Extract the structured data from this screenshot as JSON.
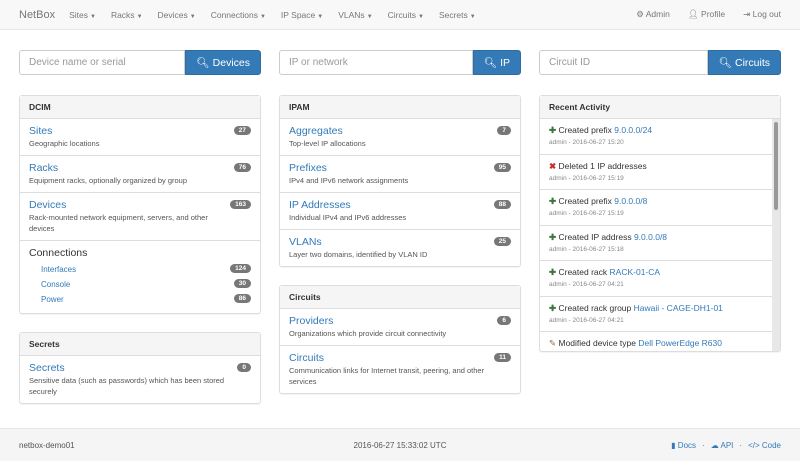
{
  "nav": {
    "brand": "NetBox",
    "menus": [
      "Sites",
      "Racks",
      "Devices",
      "Connections",
      "IP Space",
      "VLANs",
      "Circuits",
      "Secrets"
    ],
    "admin": "Admin",
    "profile": "Profile",
    "logout": "Log out"
  },
  "search": {
    "device": {
      "placeholder": "Device name or serial",
      "button": "Devices"
    },
    "ip": {
      "placeholder": "IP or network",
      "button": "IP"
    },
    "circuit": {
      "placeholder": "Circuit ID",
      "button": "Circuits"
    }
  },
  "dcim": {
    "title": "DCIM",
    "items": [
      {
        "label": "Sites",
        "desc": "Geographic locations",
        "count": "27"
      },
      {
        "label": "Racks",
        "desc": "Equipment racks, optionally organized by group",
        "count": "76"
      },
      {
        "label": "Devices",
        "desc": "Rack-mounted network equipment, servers, and other devices",
        "count": "163"
      }
    ],
    "connections": {
      "label": "Connections",
      "items": [
        {
          "label": "Interfaces",
          "count": "124"
        },
        {
          "label": "Console",
          "count": "30"
        },
        {
          "label": "Power",
          "count": "86"
        }
      ]
    }
  },
  "secrets": {
    "title": "Secrets",
    "items": [
      {
        "label": "Secrets",
        "desc": "Sensitive data (such as passwords) which has been stored securely",
        "count": "0"
      }
    ]
  },
  "ipam": {
    "title": "IPAM",
    "items": [
      {
        "label": "Aggregates",
        "desc": "Top-level IP allocations",
        "count": "7"
      },
      {
        "label": "Prefixes",
        "desc": "IPv4 and IPv6 network assignments",
        "count": "95"
      },
      {
        "label": "IP Addresses",
        "desc": "Individual IPv4 and IPv6 addresses",
        "count": "88"
      },
      {
        "label": "VLANs",
        "desc": "Layer two domains, identified by VLAN ID",
        "count": "25"
      }
    ]
  },
  "circuits": {
    "title": "Circuits",
    "items": [
      {
        "label": "Providers",
        "desc": "Organizations which provide circuit connectivity",
        "count": "6"
      },
      {
        "label": "Circuits",
        "desc": "Communication links for Internet transit, peering, and other services",
        "count": "11"
      }
    ]
  },
  "activity": {
    "title": "Recent Activity",
    "items": [
      {
        "icon": "plus",
        "text": "Created prefix",
        "link": "9.0.0.0/24",
        "meta": "admin - 2016-06-27 15:20"
      },
      {
        "icon": "x",
        "text": "Deleted 1 IP addresses",
        "link": "",
        "meta": "admin - 2016-06-27 15:19"
      },
      {
        "icon": "plus",
        "text": "Created prefix",
        "link": "9.0.0.0/8",
        "meta": "admin - 2016-06-27 15:19"
      },
      {
        "icon": "plus",
        "text": "Created IP address",
        "link": "9.0.0.0/8",
        "meta": "admin - 2016-06-27 15:18"
      },
      {
        "icon": "plus",
        "text": "Created rack",
        "link": "RACK-01-CA",
        "meta": "admin - 2016-06-27 04:21"
      },
      {
        "icon": "plus",
        "text": "Created rack group",
        "link": "Hawaii - CAGE-DH1-01",
        "meta": "admin - 2016-06-27 04:21"
      },
      {
        "icon": "pencil",
        "text": "Modified device type",
        "link": "Dell PowerEdge R630",
        "meta": ""
      }
    ]
  },
  "footer": {
    "host": "netbox-demo01",
    "time": "2016-06-27 15:33:02 UTC",
    "docs": "Docs",
    "api": "API",
    "code": "Code"
  }
}
